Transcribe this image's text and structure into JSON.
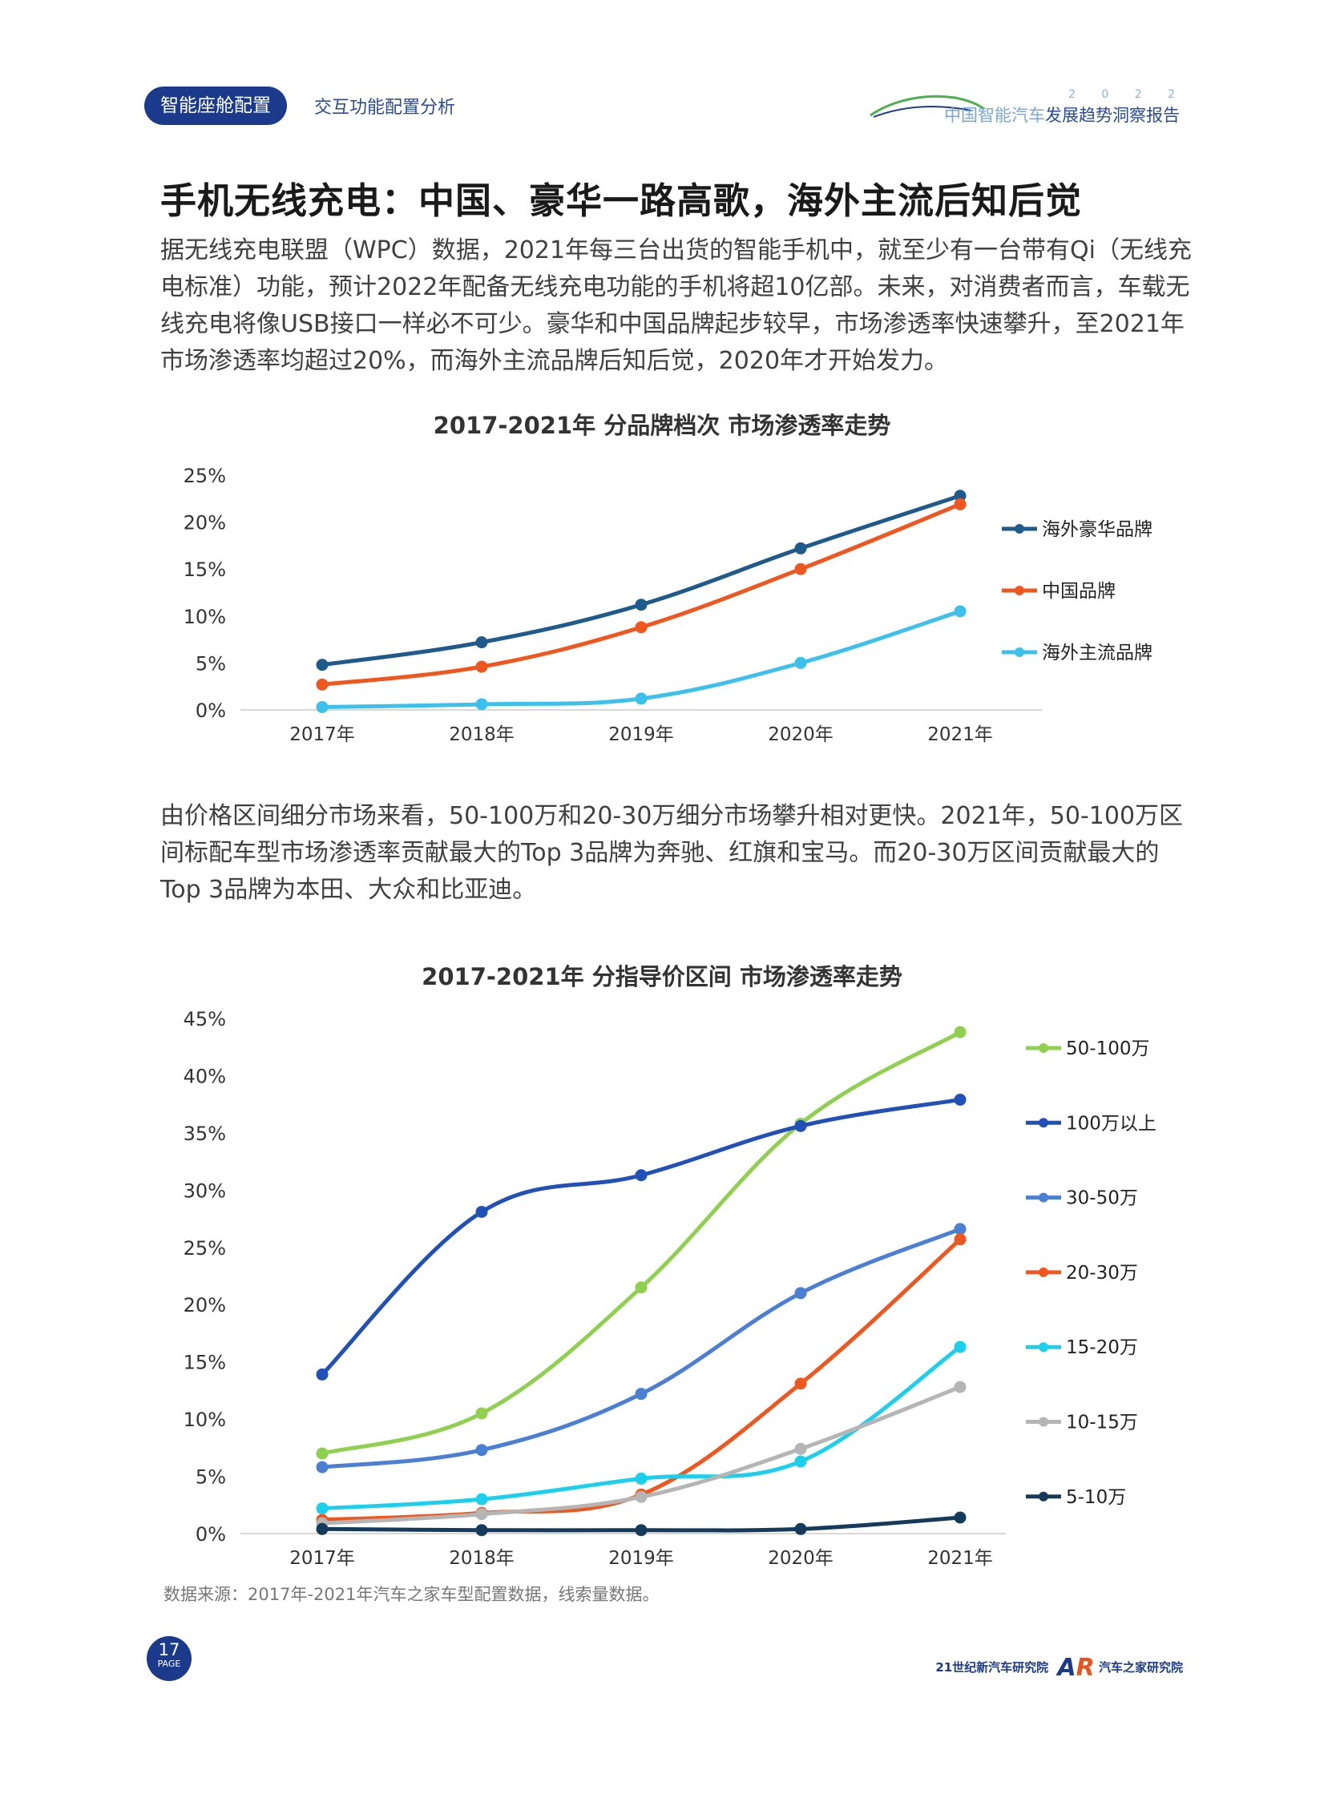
{
  "header": {
    "section_badge": "智能座舱配置",
    "section_sub": "交互功能配置分析",
    "report_year": "2 0 2 2",
    "report_name_light": "中国智能汽车",
    "report_name_dark": "发展趋势洞察报告"
  },
  "heading": "手机无线充电：中国、豪华一路高歌，海外主流后知后觉",
  "paragraph1": "据无线充电联盟（WPC）数据，2021年每三台出货的智能手机中，就至少有一台带有Qi（无线充电标准）功能，预计2022年配备无线充电功能的手机将超10亿部。未来，对消费者而言，车载无线充电将像USB接口一样必不可少。豪华和中国品牌起步较早，市场渗透率快速攀升，至2021年市场渗透率均超过20%，而海外主流品牌后知后觉，2020年才开始发力。",
  "paragraph2": "由价格区间细分市场来看，50-100万和20-30万细分市场攀升相对更快。2021年，50-100万区间标配车型市场渗透率贡献最大的Top 3品牌为奔驰、红旗和宝马。而20-30万区间贡献最大的Top 3品牌为本田、大众和比亚迪。",
  "source_note": "数据来源：2017年-2021年汽车之家车型配置数据，线索量数据。",
  "page": {
    "number": "17",
    "word": "PAGE"
  },
  "footer": {
    "org1": "21世纪新汽车研究院",
    "org2_mark_a": "A",
    "org2_mark_r": "R",
    "org2": "汽车之家研究院"
  },
  "chart_data": [
    {
      "type": "line",
      "title": "2017-2021年 分品牌档次 市场渗透率走势",
      "categories": [
        "2017年",
        "2018年",
        "2019年",
        "2020年",
        "2021年"
      ],
      "yticks": [
        "0%",
        "5%",
        "10%",
        "15%",
        "20%",
        "25%"
      ],
      "ylim": [
        0,
        25
      ],
      "legend_position": "right",
      "series": [
        {
          "name": "海外豪华品牌",
          "color": "#1f5a8c",
          "values": [
            4.8,
            7.2,
            11.2,
            17.2,
            22.8
          ]
        },
        {
          "name": "中国品牌",
          "color": "#f0571e",
          "values": [
            2.7,
            4.6,
            8.8,
            15.0,
            21.9
          ]
        },
        {
          "name": "海外主流品牌",
          "color": "#3cc0ec",
          "values": [
            0.3,
            0.6,
            1.2,
            5.0,
            10.5
          ]
        }
      ]
    },
    {
      "type": "line",
      "title": "2017-2021年 分指导价区间 市场渗透率走势",
      "categories": [
        "2017年",
        "2018年",
        "2019年",
        "2020年",
        "2021年"
      ],
      "yticks": [
        "0%",
        "5%",
        "10%",
        "15%",
        "20%",
        "25%",
        "30%",
        "35%",
        "40%",
        "45%"
      ],
      "ylim": [
        0,
        45
      ],
      "legend_position": "right",
      "series": [
        {
          "name": "50-100万",
          "color": "#8fd14f",
          "values": [
            7.0,
            10.5,
            21.5,
            35.8,
            43.8
          ]
        },
        {
          "name": "100万以上",
          "color": "#2150b8",
          "values": [
            13.9,
            28.1,
            31.3,
            35.6,
            37.9
          ]
        },
        {
          "name": "30-50万",
          "color": "#4a7fd4",
          "values": [
            5.8,
            7.3,
            12.2,
            21.0,
            26.6
          ]
        },
        {
          "name": "20-30万",
          "color": "#f0571e",
          "values": [
            1.2,
            1.8,
            3.4,
            13.1,
            25.7
          ]
        },
        {
          "name": "15-20万",
          "color": "#1ad0ec",
          "values": [
            2.2,
            3.0,
            4.8,
            6.3,
            16.3
          ]
        },
        {
          "name": "10-15万",
          "color": "#b5b5b5",
          "values": [
            0.9,
            1.7,
            3.2,
            7.4,
            12.8
          ]
        },
        {
          "name": "5-10万",
          "color": "#163a5c",
          "values": [
            0.4,
            0.3,
            0.3,
            0.4,
            1.4
          ]
        }
      ]
    }
  ]
}
